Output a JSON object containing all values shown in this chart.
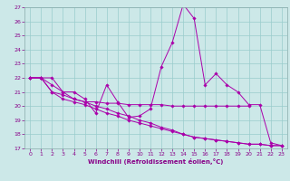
{
  "xlabel": "Windchill (Refroidissement éolien,°C)",
  "bg_color": "#cce8e8",
  "line_color": "#aa00aa",
  "grid_color": "#99cccc",
  "xlim": [
    -0.5,
    23.5
  ],
  "ylim": [
    17,
    27
  ],
  "yticks": [
    17,
    18,
    19,
    20,
    21,
    22,
    23,
    24,
    25,
    26,
    27
  ],
  "xticks": [
    0,
    1,
    2,
    3,
    4,
    5,
    6,
    7,
    8,
    9,
    10,
    11,
    12,
    13,
    14,
    15,
    16,
    17,
    18,
    19,
    20,
    21,
    22,
    23
  ],
  "series": [
    {
      "x": [
        0,
        1,
        2,
        3,
        4,
        5,
        6,
        7,
        8,
        9,
        10,
        11,
        12,
        13,
        14,
        15,
        16,
        17,
        18,
        19,
        20,
        21,
        22,
        23
      ],
      "y": [
        22,
        22,
        22,
        21,
        21,
        20.5,
        19.5,
        21.5,
        20.3,
        19.2,
        19.3,
        19.8,
        22.8,
        24.5,
        27.2,
        26.2,
        21.5,
        22.3,
        21.5,
        21.0,
        20.1,
        20.1,
        17.4,
        17.2
      ]
    },
    {
      "x": [
        0,
        1,
        2,
        3,
        4,
        5,
        6,
        7,
        8,
        9,
        10,
        11,
        12,
        13,
        14,
        15,
        16,
        17,
        18,
        19,
        20
      ],
      "y": [
        22,
        22,
        21.5,
        21.0,
        20.5,
        20.3,
        20.3,
        20.2,
        20.2,
        20.1,
        20.1,
        20.1,
        20.1,
        20.0,
        20.0,
        20.0,
        20.0,
        20.0,
        20.0,
        20.0,
        20.0
      ]
    },
    {
      "x": [
        0,
        1,
        2,
        3,
        4,
        5,
        6,
        7,
        8,
        9,
        10,
        11,
        12,
        13,
        14,
        15,
        16,
        17,
        18,
        19,
        20,
        21,
        22,
        23
      ],
      "y": [
        22,
        22,
        21.0,
        20.5,
        20.3,
        20.1,
        19.8,
        19.5,
        19.3,
        19.0,
        18.8,
        18.6,
        18.4,
        18.2,
        18.0,
        17.8,
        17.7,
        17.6,
        17.5,
        17.4,
        17.3,
        17.3,
        17.2,
        17.2
      ]
    },
    {
      "x": [
        0,
        1,
        2,
        3,
        4,
        5,
        6,
        7,
        8,
        9,
        10,
        11,
        12,
        13,
        14,
        15,
        16,
        17,
        18,
        19,
        20,
        21,
        22,
        23
      ],
      "y": [
        22,
        22,
        21.0,
        20.8,
        20.5,
        20.3,
        20.0,
        19.8,
        19.5,
        19.3,
        19.0,
        18.8,
        18.5,
        18.3,
        18.0,
        17.8,
        17.7,
        17.6,
        17.5,
        17.4,
        17.3,
        17.3,
        17.2,
        17.2
      ]
    }
  ]
}
